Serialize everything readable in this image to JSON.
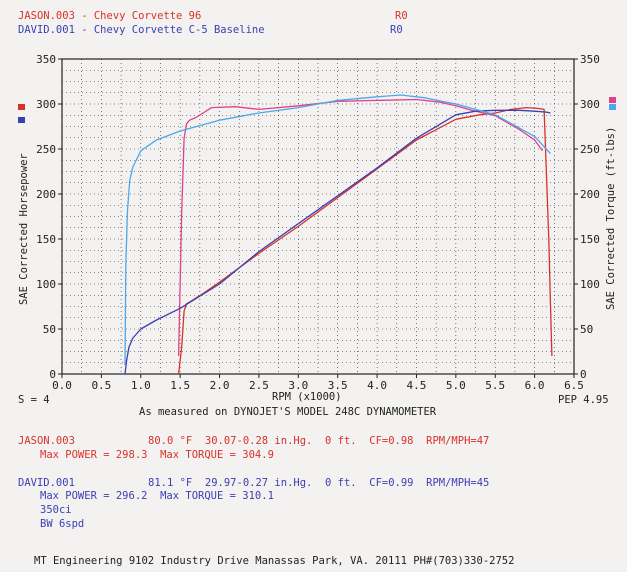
{
  "header": {
    "run1_label": "JASON.003 - Chevy Corvette 96",
    "run1_tag": "R0",
    "run2_label": "DAVID.001 - Chevy Corvette C-5 Baseline",
    "run2_tag": "R0"
  },
  "footer_left": "S = 4",
  "footer_right": "PEP 4.95",
  "footer_caption": "As measured on DYNOJET'S MODEL 248C DYNAMOMETER",
  "run1_info": {
    "name": "JASON.003",
    "conditions": "80.0 °F  30.07-0.28 in.Hg.  0 ft.  CF=0.98  RPM/MPH=47",
    "max_line": "Max POWER = 298.3  Max TORQUE = 304.9"
  },
  "run2_info": {
    "name": "DAVID.001",
    "conditions": "81.1 °F  29.97-0.27 in.Hg.  0 ft.  CF=0.99  RPM/MPH=45",
    "max_line": "Max POWER = 296.2  Max TORQUE = 310.1",
    "extra1": "350ci",
    "extra2": "BW 6spd"
  },
  "company": "MT Engineering 9102 Industry Drive Manassas Park, VA. 20111 PH#(703)330-2752",
  "colors": {
    "red": "#d8322c",
    "blue": "#3a3fb4",
    "lightblue": "#4aa8ec",
    "pink": "#e0408c"
  },
  "chart_data": {
    "type": "line",
    "xlabel": "RPM (x1000)",
    "ylabel_left": "SAE Corrected Horsepower",
    "ylabel_right": "SAE Corrected Torque (ft-lbs)",
    "xlim": [
      0,
      6.5
    ],
    "ylim": [
      0,
      350
    ],
    "x_ticks": [
      "0.0",
      "0.5",
      "1.0",
      "1.5",
      "2.0",
      "2.5",
      "3.0",
      "3.5",
      "4.0",
      "4.5",
      "5.0",
      "5.5",
      "6.0",
      "6.5"
    ],
    "y_ticks": [
      "0",
      "50",
      "100",
      "150",
      "200",
      "250",
      "300",
      "350"
    ],
    "grid": true,
    "series": [
      {
        "name": "JASON.003 Power",
        "color": "#d8322c",
        "x": [
          1.48,
          1.52,
          1.55,
          1.58,
          1.62,
          1.8,
          2.0,
          2.5,
          3.0,
          3.5,
          4.0,
          4.5,
          5.0,
          5.3,
          5.5,
          5.7,
          5.9,
          6.05,
          6.12,
          6.18,
          6.2,
          6.22
        ],
        "y": [
          0,
          30,
          70,
          78,
          80,
          90,
          102,
          134,
          164,
          196,
          228,
          260,
          283,
          288,
          290,
          294,
          296,
          295,
          294,
          150,
          80,
          20
        ]
      },
      {
        "name": "JASON.003 Torque",
        "color": "#e0408c",
        "x": [
          1.48,
          1.52,
          1.55,
          1.58,
          1.62,
          1.7,
          1.9,
          2.2,
          2.5,
          3.0,
          3.5,
          4.0,
          4.5,
          4.8,
          5.0,
          5.2,
          5.5,
          5.8,
          6.0,
          6.1
        ],
        "y": [
          20,
          180,
          262,
          278,
          282,
          285,
          296,
          297,
          294,
          298,
          303,
          304,
          305,
          302,
          298,
          293,
          287,
          272,
          260,
          248
        ]
      },
      {
        "name": "DAVID.001 Power",
        "color": "#3a3fb4",
        "x": [
          0.8,
          0.82,
          0.85,
          0.9,
          1.0,
          1.2,
          1.5,
          2.0,
          2.5,
          3.0,
          3.5,
          4.0,
          4.5,
          5.0,
          5.25,
          5.5,
          5.8,
          6.0,
          6.15,
          6.2
        ],
        "y": [
          0,
          15,
          30,
          40,
          50,
          60,
          73,
          100,
          136,
          167,
          198,
          229,
          262,
          288,
          292,
          293,
          293,
          292,
          291,
          290
        ]
      },
      {
        "name": "DAVID.001 Torque",
        "color": "#4aa8ec",
        "x": [
          0.8,
          0.81,
          0.83,
          0.86,
          0.9,
          1.0,
          1.2,
          1.5,
          2.0,
          2.5,
          3.0,
          3.5,
          4.0,
          4.3,
          4.6,
          5.0,
          5.5,
          6.0,
          6.2
        ],
        "y": [
          10,
          120,
          180,
          215,
          230,
          248,
          260,
          270,
          282,
          290,
          296,
          304,
          308,
          310,
          307,
          300,
          288,
          264,
          245
        ]
      }
    ]
  }
}
